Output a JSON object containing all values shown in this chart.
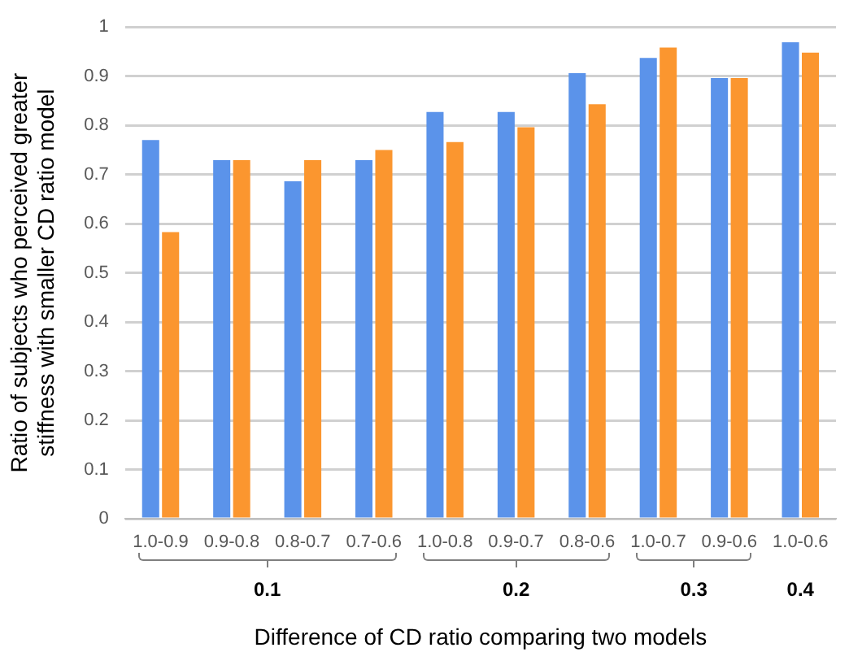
{
  "chart_data": {
    "type": "bar",
    "xlabel": "Difference of CD ratio comparing two models",
    "ylabel": "Ratio of subjects who perceived greater\nstiffness with smaller CD ratio model",
    "categories": [
      "1.0-0.9",
      "0.9-0.8",
      "0.8-0.7",
      "0.7-0.6",
      "1.0-0.8",
      "0.9-0.7",
      "0.8-0.6",
      "1.0-0.7",
      "0.9-0.6",
      "1.0-0.6"
    ],
    "series": [
      {
        "color": "#5b93ea",
        "values": [
          0.77,
          0.729,
          0.686,
          0.729,
          0.827,
          0.827,
          0.906,
          0.937,
          0.896,
          0.969
        ]
      },
      {
        "color": "#fb962f",
        "values": [
          0.583,
          0.729,
          0.729,
          0.75,
          0.766,
          0.796,
          0.843,
          0.958,
          0.896,
          0.948
        ]
      }
    ],
    "ylim": [
      0,
      1
    ],
    "yticks": [
      0,
      0.1,
      0.2,
      0.3,
      0.4,
      0.5,
      0.6,
      0.7,
      0.8,
      0.9,
      1
    ],
    "grid": "y",
    "legend": false,
    "annotations": [
      "0.1",
      "0.2",
      "0.3",
      "0.4"
    ]
  }
}
